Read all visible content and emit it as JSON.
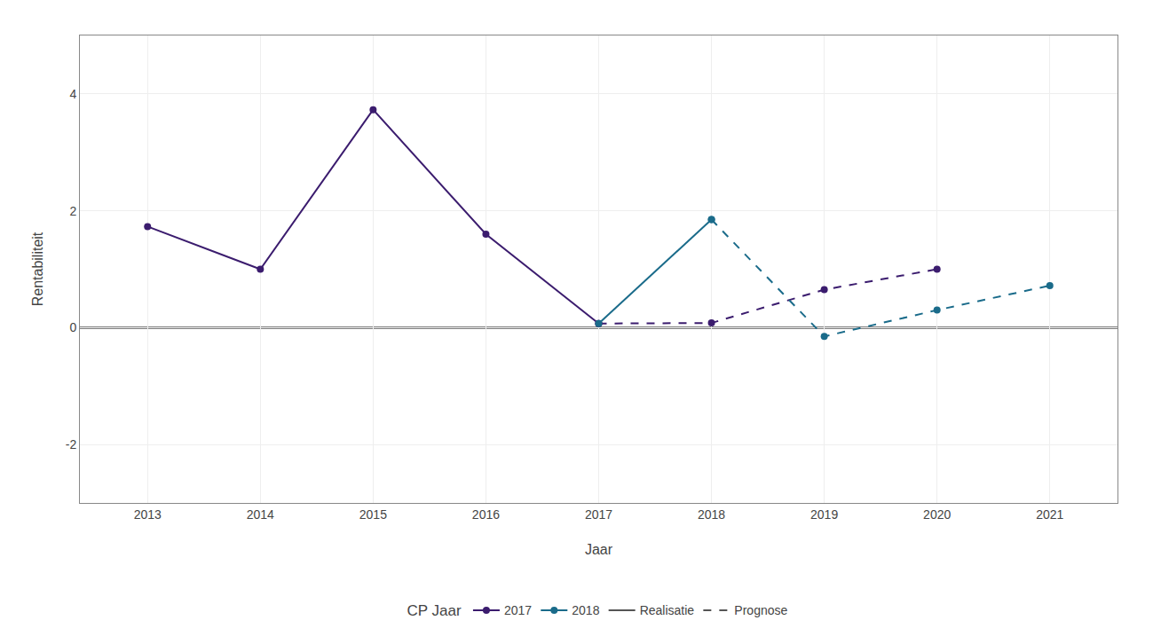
{
  "chart_data": {
    "type": "line",
    "x_label": "Jaar",
    "y_label": "Rentabiliteit",
    "marker": "circle",
    "grid": true,
    "legend": "bottom",
    "legend_title": "CP Jaar",
    "series": [
      {
        "name": "2017",
        "color": "#3b1c6e",
        "line_style": "solid",
        "x": [
          2013,
          2014,
          2015,
          2016,
          2017
        ],
        "values": [
          1.73,
          1.0,
          3.73,
          1.6,
          0.07
        ]
      },
      {
        "name": "2017",
        "color": "#3b1c6e",
        "line_style": "dashed",
        "x": [
          2017,
          2018,
          2019,
          2020
        ],
        "values": [
          0.07,
          0.08,
          0.65,
          1.0
        ]
      },
      {
        "name": "2018",
        "color": "#1a6b8a",
        "line_style": "solid",
        "x": [
          2017,
          2018
        ],
        "values": [
          0.07,
          1.85
        ]
      },
      {
        "name": "2018",
        "color": "#1a6b8a",
        "line_style": "dashed",
        "x": [
          2018,
          2019,
          2020,
          2021
        ],
        "values": [
          1.85,
          -0.15,
          0.3,
          0.72
        ]
      }
    ],
    "line_style_legend": [
      {
        "name": "Realisatie",
        "line_style": "solid",
        "color": "#555555"
      },
      {
        "name": "Prognose",
        "line_style": "dashed",
        "color": "#555555"
      }
    ],
    "hline_y": 0,
    "xlim": [
      2012.4,
      2021.6
    ],
    "xticks": [
      2013,
      2014,
      2015,
      2016,
      2017,
      2018,
      2019,
      2020,
      2021
    ],
    "ylim": [
      -3,
      5
    ],
    "yticks": [
      -2,
      0,
      2,
      4
    ]
  }
}
